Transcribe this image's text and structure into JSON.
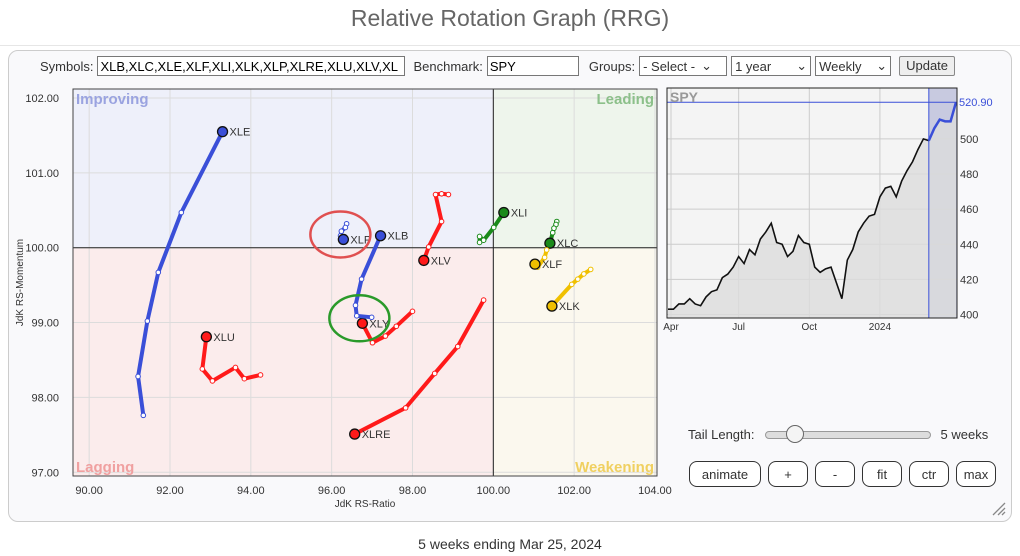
{
  "title": "Relative Rotation Graph (RRG)",
  "toolbar": {
    "symbols_label": "Symbols:",
    "symbols_value": "XLB,XLC,XLE,XLF,XLI,XLK,XLP,XLRE,XLU,XLV,XL",
    "benchmark_label": "Benchmark:",
    "benchmark_value": "SPY",
    "groups_label": "Groups:",
    "groups_value": "- Select -",
    "period_value": "1 year",
    "interval_value": "Weekly",
    "update_label": "Update"
  },
  "controls": {
    "tail_label": "Tail Length:",
    "tail_value": "5 weeks",
    "tail_weeks": 5,
    "buttons": [
      "animate",
      "+",
      "-",
      "fit",
      "ctr",
      "max"
    ]
  },
  "footer": "5 weeks ending Mar 25, 2024",
  "chart_data": [
    {
      "type": "scatter",
      "subtype": "relative-rotation-graph",
      "xlabel": "JdK RS-Ratio",
      "ylabel": "JdK RS-Momentum",
      "xlim": [
        89.6,
        104.05
      ],
      "ylim": [
        96.95,
        102.12
      ],
      "xticks": [
        "90.00",
        "92.00",
        "94.00",
        "96.00",
        "98.00",
        "100.00",
        "102.00",
        "104.00"
      ],
      "yticks": [
        "97.00",
        "98.00",
        "99.00",
        "100.00",
        "101.00",
        "102.00"
      ],
      "grid": true,
      "quadrants": [
        {
          "name": "Improving",
          "color": "#eef0fa",
          "label_color": "#9aa3e0"
        },
        {
          "name": "Leading",
          "color": "#eef5ec",
          "label_color": "#8cc08a"
        },
        {
          "name": "Lagging",
          "color": "#fbecec",
          "label_color": "#f0a0a0"
        },
        {
          "name": "Weakening",
          "color": "#fbf8ee",
          "label_color": "#f0d060"
        }
      ],
      "series": [
        {
          "name": "XLE",
          "color": "#3a4fd8",
          "points": [
            [
              91.34,
              97.76
            ],
            [
              91.21,
              98.28
            ],
            [
              91.44,
              99.02
            ],
            [
              91.71,
              99.67
            ],
            [
              92.28,
              100.47
            ],
            [
              93.3,
              101.55
            ]
          ]
        },
        {
          "name": "XLU",
          "color": "#ff1a1a",
          "points": [
            [
              94.24,
              98.3
            ],
            [
              93.84,
              98.25
            ],
            [
              93.62,
              98.4
            ],
            [
              93.05,
              98.22
            ],
            [
              92.8,
              98.38
            ],
            [
              92.9,
              98.81
            ]
          ]
        },
        {
          "name": "XLRE",
          "color": "#ff1a1a",
          "points": [
            [
              99.76,
              99.3
            ],
            [
              99.12,
              98.68
            ],
            [
              98.55,
              98.32
            ],
            [
              97.83,
              97.86
            ],
            [
              96.57,
              97.51
            ]
          ]
        },
        {
          "name": "XLY",
          "color": "#ff1a1a",
          "points": [
            [
              98.0,
              99.15
            ],
            [
              97.6,
              98.95
            ],
            [
              97.33,
              98.82
            ],
            [
              97.01,
              98.73
            ],
            [
              96.76,
              98.99
            ]
          ]
        },
        {
          "name": "XLB",
          "color": "#3a4fd8",
          "points": [
            [
              96.99,
              99.07
            ],
            [
              96.62,
              99.09
            ],
            [
              96.59,
              99.23
            ],
            [
              96.74,
              99.58
            ],
            [
              97.21,
              100.16
            ]
          ]
        },
        {
          "name": "XLP",
          "color": "#3a4fd8",
          "points": [
            [
              96.37,
              100.32
            ],
            [
              96.34,
              100.27
            ],
            [
              96.24,
              100.22
            ],
            [
              96.22,
              100.16
            ],
            [
              96.29,
              100.11
            ]
          ]
        },
        {
          "name": "XLV",
          "color": "#ff1a1a",
          "points": [
            [
              98.89,
              100.71
            ],
            [
              98.72,
              100.72
            ],
            [
              98.57,
              100.71
            ],
            [
              98.72,
              100.35
            ],
            [
              98.4,
              100.01
            ],
            [
              98.28,
              99.83
            ]
          ]
        },
        {
          "name": "XLI",
          "color": "#1a8a1a",
          "points": [
            [
              99.66,
              100.07
            ],
            [
              99.66,
              100.15
            ],
            [
              99.76,
              100.1
            ],
            [
              100.01,
              100.27
            ],
            [
              100.26,
              100.47
            ]
          ]
        },
        {
          "name": "XLC",
          "color": "#1a8a1a",
          "points": [
            [
              101.57,
              100.35
            ],
            [
              101.55,
              100.31
            ],
            [
              101.5,
              100.26
            ],
            [
              101.47,
              100.2
            ],
            [
              101.4,
              100.06
            ]
          ]
        },
        {
          "name": "XLF",
          "color": "#f0c000",
          "points": [
            [
              101.32,
              99.97
            ],
            [
              101.27,
              99.87
            ],
            [
              101.1,
              99.74
            ],
            [
              101.03,
              99.78
            ]
          ]
        },
        {
          "name": "XLK",
          "color": "#f0c000",
          "points": [
            [
              102.41,
              99.71
            ],
            [
              102.24,
              99.65
            ],
            [
              102.09,
              99.58
            ],
            [
              101.94,
              99.51
            ],
            [
              101.45,
              99.22
            ]
          ]
        }
      ],
      "annotations": [
        {
          "type": "ellipse",
          "around": "XLP",
          "color": "#e05050"
        },
        {
          "type": "ellipse",
          "around": "XLY",
          "color": "#2a9a2a"
        }
      ]
    },
    {
      "type": "line",
      "title": "SPY",
      "last_value_label": "520.90",
      "xticks": [
        "Apr",
        "Jul",
        "Oct",
        "2024"
      ],
      "yticks": [
        "400",
        "420",
        "440",
        "460",
        "480",
        "500"
      ],
      "ylim": [
        398,
        529
      ],
      "grid": true,
      "line_color": "#111111",
      "tail_color": "#3a4fd8",
      "values": [
        403,
        403,
        406,
        406,
        409,
        406,
        405,
        410,
        413,
        414,
        421,
        423,
        427,
        433,
        429,
        437,
        434,
        443,
        447,
        452,
        441,
        440,
        433,
        436,
        445,
        441,
        440,
        427,
        424,
        426,
        427,
        418,
        409,
        431,
        437,
        447,
        452,
        456,
        457,
        467,
        472,
        473,
        467,
        476,
        482,
        487,
        494,
        500,
        499,
        506,
        511,
        510,
        510,
        520.9
      ]
    }
  ]
}
